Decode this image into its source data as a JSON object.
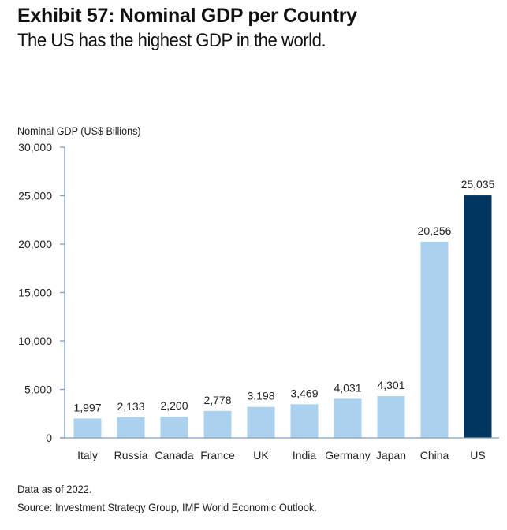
{
  "header": {
    "title": "Exhibit 57: Nominal GDP per Country",
    "subtitle": "The US has the highest GDP in the world."
  },
  "footer": {
    "note": "Data as of 2022.",
    "source": "Source: Investment Strategy Group, IMF World Economic Outlook."
  },
  "colors": {
    "bar_default": "#abd1ef",
    "bar_highlight": "#003660",
    "axis": "#7f9fc6"
  },
  "chart_data": {
    "type": "bar",
    "title": "Exhibit 57: Nominal GDP per Country",
    "subtitle": "The US has the highest GDP in the world.",
    "xlabel": "",
    "ylabel": "Nominal GDP (US$ Billions)",
    "ylim": [
      0,
      30000
    ],
    "yticks": [
      0,
      5000,
      10000,
      15000,
      20000,
      25000,
      30000
    ],
    "ytick_labels": [
      "0",
      "5,000",
      "10,000",
      "15,000",
      "20,000",
      "25,000",
      "30,000"
    ],
    "grid": false,
    "legend": "none",
    "categories": [
      "Italy",
      "Russia",
      "Canada",
      "France",
      "UK",
      "India",
      "Germany",
      "Japan",
      "China",
      "US"
    ],
    "values": [
      1997,
      2133,
      2200,
      2778,
      3198,
      3469,
      4031,
      4301,
      20256,
      25035
    ],
    "data_labels": [
      "1,997",
      "2,133",
      "2,200",
      "2,778",
      "3,198",
      "3,469",
      "4,031",
      "4,301",
      "20,256",
      "25,035"
    ],
    "highlight": [
      "US"
    ]
  }
}
